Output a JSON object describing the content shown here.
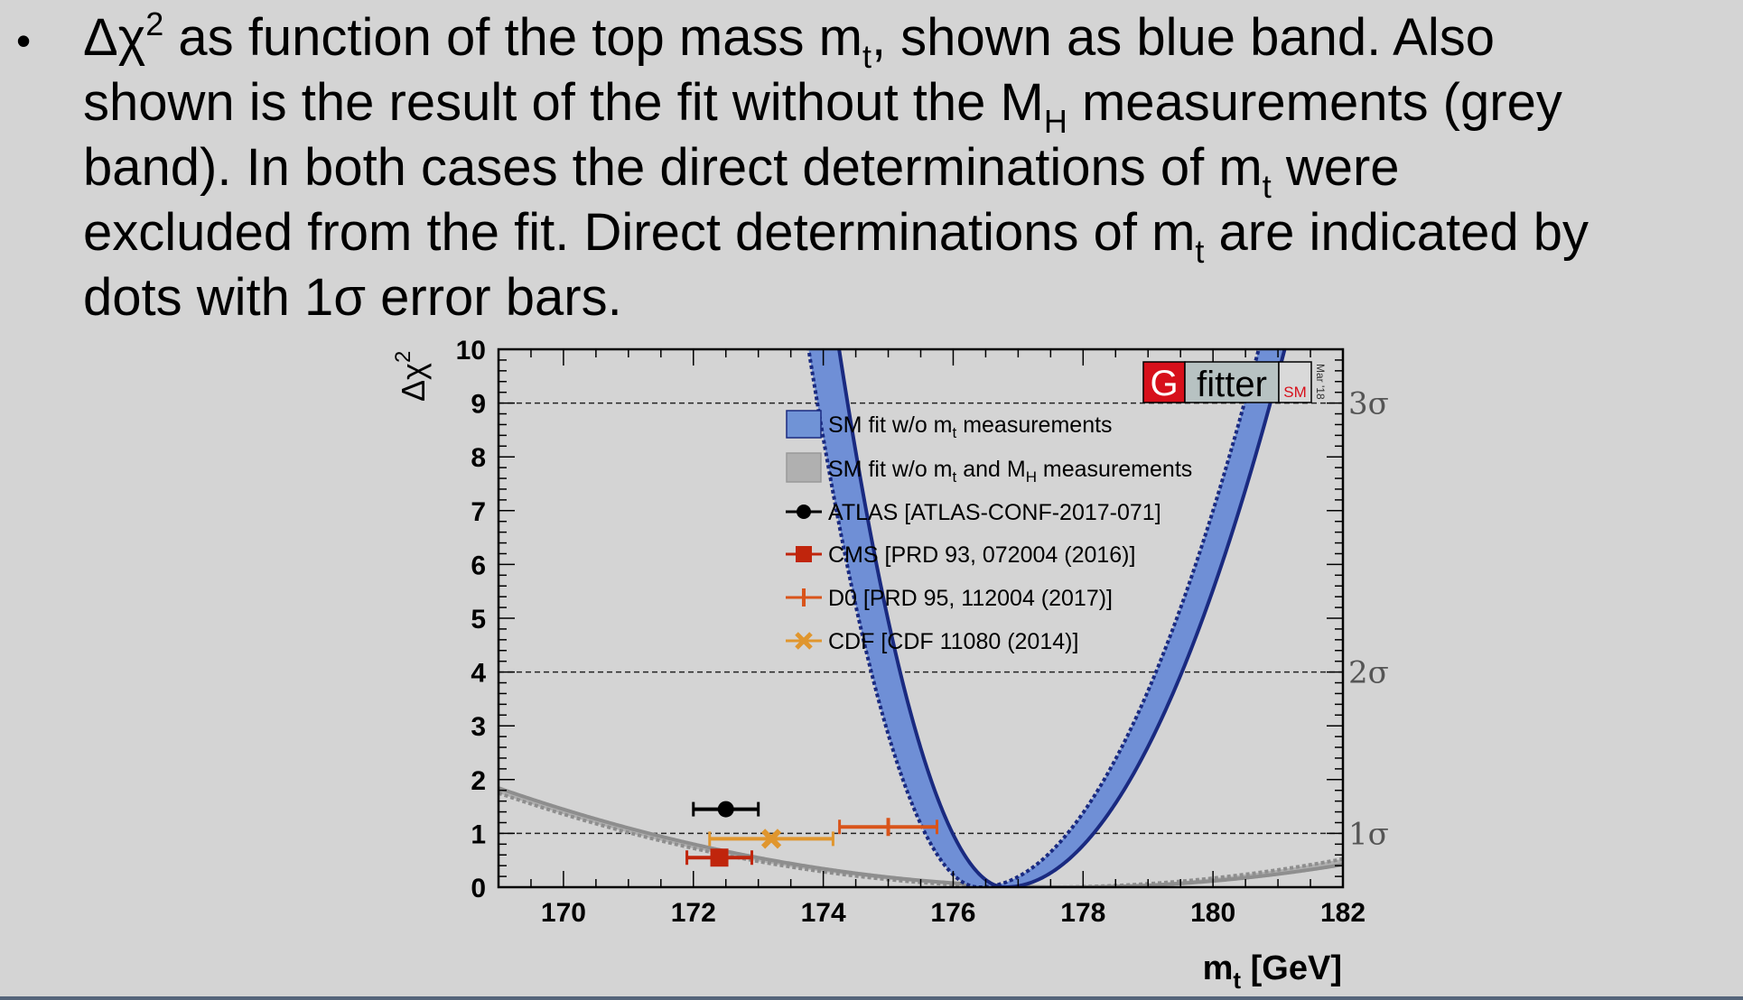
{
  "slide": {
    "bullet": "•",
    "line1": {
      "a": "Δχ",
      "b": "2",
      "c": " as function of the top mass m",
      "d": "t",
      "e": ", shown as blue band. Also"
    },
    "line2": {
      "a": "shown is the result of the fit without the M",
      "b": "H",
      "c": " measurements (grey"
    },
    "line3": {
      "a": "band). In both cases the direct determinations of m",
      "b": "t",
      "c": " were"
    },
    "line4": {
      "a": "excluded from the fit. Direct determinations of m",
      "b": "t",
      "c": " are indicated by"
    },
    "line5": "dots with 1σ error bars."
  },
  "chart_data": {
    "type": "line",
    "xlabel": {
      "main": "m",
      "sub": "t",
      "unit": " [GeV]"
    },
    "ylabel": {
      "main": "Δχ",
      "sup": "2"
    },
    "xlim": [
      169,
      182
    ],
    "ylim": [
      0,
      10
    ],
    "x_ticks": [
      170,
      172,
      174,
      176,
      178,
      180,
      182
    ],
    "y_ticks": [
      0,
      1,
      2,
      3,
      4,
      5,
      6,
      7,
      8,
      9,
      10
    ],
    "sigma_lines": [
      {
        "y": 1,
        "label": "1σ"
      },
      {
        "y": 4,
        "label": "2σ"
      },
      {
        "y": 9,
        "label": "3σ"
      }
    ],
    "logo": {
      "g": "G",
      "fitter": "fitter",
      "sm": "SM",
      "date": "Mar '18"
    },
    "series": [
      {
        "name": "SM fit w/o m_t measurements",
        "kind": "band",
        "color": "#1a2a80",
        "fill": "#6f8fd6",
        "lower": {
          "min": 176.8,
          "a_left": 1.53,
          "a_right": 0.54
        },
        "upper": {
          "min": 176.4,
          "a_left": 1.45,
          "a_right": 0.54
        }
      },
      {
        "name": "SM fit w/o m_t and M_H measurements",
        "kind": "band",
        "color": "#8e8e8e",
        "fill": "#b0b0b0",
        "lower": {
          "min": 177.8,
          "a": 0.0238
        },
        "upper": {
          "min": 177.4,
          "a": 0.0248
        }
      }
    ],
    "measurements": [
      {
        "name": "ATLAS [ATLAS-CONF-2017-071]",
        "x": 172.5,
        "y": 1.45,
        "err": 0.5,
        "marker": "circle",
        "color": "#000000"
      },
      {
        "name": "CMS [PRD 93, 072004 (2016)]",
        "x": 172.4,
        "y": 0.55,
        "err": 0.5,
        "marker": "square",
        "color": "#c0250c"
      },
      {
        "name": "D0 [PRD 95, 112004 (2017)]",
        "x": 175.0,
        "y": 1.12,
        "err": 0.75,
        "marker": "cross",
        "color": "#d9541a"
      },
      {
        "name": "CDF [CDF 11080 (2014)]",
        "x": 173.2,
        "y": 0.9,
        "err": 0.95,
        "marker": "x",
        "color": "#e0962e"
      }
    ],
    "legend": {
      "position": "top-center",
      "entries": [
        {
          "main": "SM fit w/o m",
          "sub": "t",
          "rest": " measurements"
        },
        {
          "main": "SM fit w/o m",
          "sub": "t",
          "mid": " and M",
          "sub2": "H",
          "rest": " measurements"
        },
        {
          "main": "ATLAS [ATLAS-CONF-2017-071]"
        },
        {
          "main": "CMS [PRD 93, 072004 (2016)]"
        },
        {
          "main": "D0 [PRD 95, 112004 (2017)]"
        },
        {
          "main": "CDF [CDF 11080 (2014)]"
        }
      ]
    }
  }
}
